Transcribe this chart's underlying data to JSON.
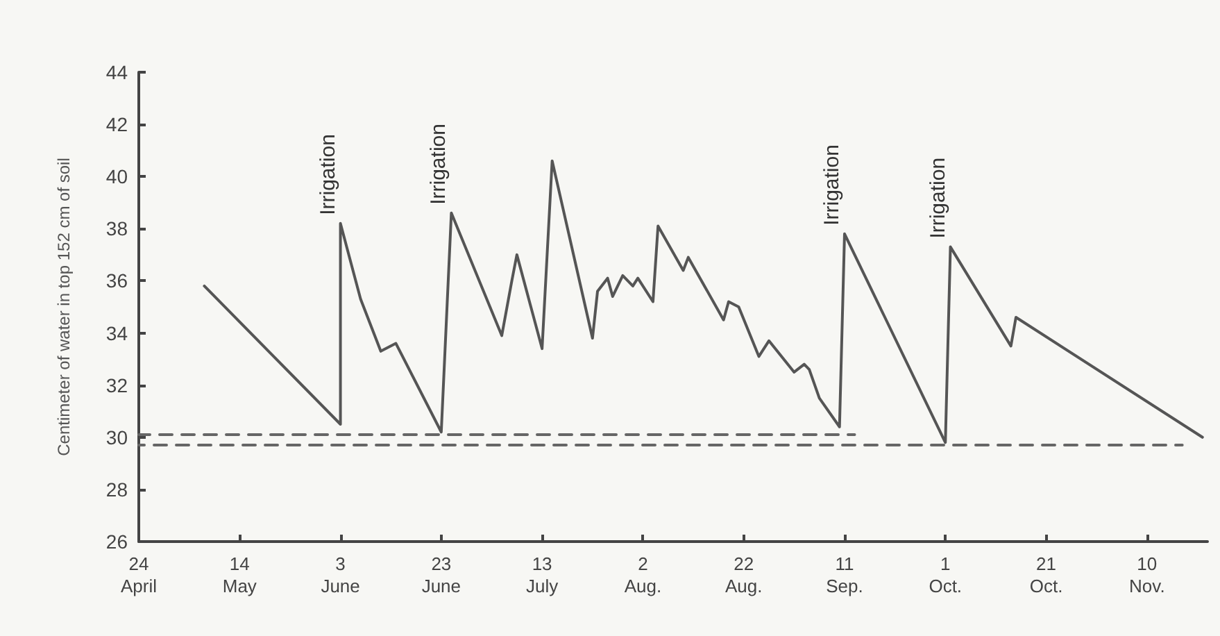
{
  "chart_data": {
    "type": "line",
    "ylabel": "Centimeter of water in top 152 cm of soil",
    "xlim": [
      "--04-24",
      "--11-22"
    ],
    "xticks": [
      {
        "value": "--04-24",
        "label": "24\nApril"
      },
      {
        "value": "--05-14",
        "label": "14\nMay"
      },
      {
        "value": "--06-03",
        "label": "3\nJune"
      },
      {
        "value": "--06-23",
        "label": "23\nJune"
      },
      {
        "value": "--07-13",
        "label": "13\nJuly"
      },
      {
        "value": "--08-02",
        "label": "2\nAug."
      },
      {
        "value": "--08-22",
        "label": "22\nAug."
      },
      {
        "value": "--09-11",
        "label": "11\nSep."
      },
      {
        "value": "--10-01",
        "label": "1\nOct."
      },
      {
        "value": "--10-21",
        "label": "21\nOct."
      },
      {
        "value": "--11-10",
        "label": "10\nNov."
      }
    ],
    "ylim": [
      26,
      44
    ],
    "yticks": [
      26,
      28,
      30,
      32,
      34,
      36,
      38,
      40,
      42,
      44
    ],
    "grid": false,
    "marker": "none",
    "series": [
      {
        "color": "#555555",
        "line_style": "solid",
        "x": [
          "--05-07",
          "--06-03",
          "--06-03",
          "--06-07",
          "--06-11",
          "--06-14",
          "--06-23",
          "--06-25",
          "--07-05",
          "--07-07",
          "--07-08",
          "--07-13",
          "--07-15",
          "--07-23",
          "--07-24",
          "--07-26",
          "--07-27",
          "--07-29",
          "--07-31",
          "--08-01",
          "--08-04",
          "--08-05",
          "--08-10",
          "--08-11",
          "--08-18",
          "--08-19",
          "--08-21",
          "--08-25",
          "--08-27",
          "--09-01",
          "--09-03",
          "--09-04",
          "--09-06",
          "--09-10",
          "--09-11",
          "--10-01",
          "--10-02",
          "--10-14",
          "--10-15",
          "--11-21"
        ],
        "values": [
          35.8,
          30.5,
          38.2,
          35.3,
          33.3,
          33.6,
          30.2,
          38.6,
          33.9,
          36.0,
          37.0,
          33.4,
          40.6,
          33.8,
          35.6,
          36.1,
          35.4,
          36.2,
          35.8,
          36.1,
          35.2,
          38.1,
          36.4,
          36.9,
          34.5,
          35.2,
          35.0,
          33.1,
          33.7,
          32.5,
          32.8,
          32.6,
          31.5,
          30.4,
          37.8,
          29.8,
          37.3,
          33.5,
          34.6,
          30.0
        ]
      },
      {
        "color": "#666666",
        "line_style": "dashed",
        "x": [
          "--04-24",
          "--09-13"
        ],
        "values": [
          30.1,
          30.1
        ]
      },
      {
        "color": "#666666",
        "line_style": "dashed",
        "x": [
          "--04-24",
          "--11-17"
        ],
        "values": [
          29.7,
          29.7
        ]
      }
    ],
    "annotations": [
      {
        "text": "Irrigation",
        "x": "--06-03",
        "y": 38.2
      },
      {
        "text": "Irrigation",
        "x": "--06-25",
        "y": 38.6
      },
      {
        "text": "Irrigation",
        "x": "--09-11",
        "y": 37.8
      },
      {
        "text": "Irrigation",
        "x": "--10-02",
        "y": 37.3
      }
    ]
  }
}
